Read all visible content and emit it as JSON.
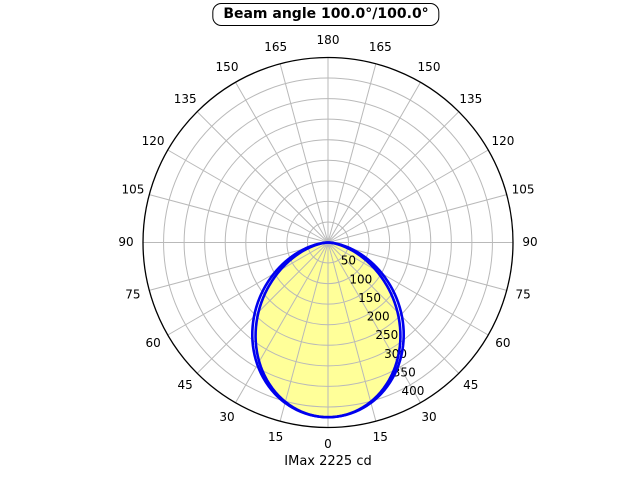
{
  "header": {
    "title": "Beam angle 100.0°/100.0°"
  },
  "footer": {
    "imax_label": "IMax 2225 cd"
  },
  "chart_data": {
    "type": "polar",
    "subtype": "luminous-intensity-distribution",
    "title": "Beam angle 100.0°/100.0°",
    "beam_angle_deg": {
      "plane_1": 100.0,
      "plane_2": 100.0
    },
    "imax_cd": 2225,
    "imax_label": "IMax 2225 cd",
    "orientation": "0-degrees-at-bottom",
    "angular_ticks_deg": [
      0,
      15,
      30,
      45,
      60,
      75,
      90,
      105,
      120,
      135,
      150,
      165,
      180
    ],
    "angular_ticks_mirrored_both_sides": true,
    "radial_ticks": [
      50,
      100,
      150,
      200,
      250,
      300,
      350,
      400
    ],
    "radial_max": 450,
    "radial_label_angle_deg": 25,
    "grid": true,
    "colors": {
      "grid": "#b9b9b9",
      "outer_ring": "#000000",
      "curve": "#0000ee",
      "fill": "#ffff99",
      "text": "#000000",
      "background": "#ffffff"
    },
    "series": [
      {
        "name": "beam-curve-wide-plane",
        "model": "cos_power",
        "exponent": 1.48,
        "imax": 425,
        "filled": false,
        "points_deg_value": [
          [
            0,
            425
          ],
          [
            10,
            416
          ],
          [
            20,
            388
          ],
          [
            30,
            344
          ],
          [
            40,
            287
          ],
          [
            50,
            221
          ],
          [
            60,
            152
          ],
          [
            70,
            87
          ],
          [
            80,
            32
          ],
          [
            90,
            0
          ]
        ]
      },
      {
        "name": "beam-curve-narrow-plane",
        "model": "cos_power",
        "exponent": 1.66,
        "imax": 425,
        "filled": true,
        "points_deg_value": [
          [
            0,
            425
          ],
          [
            10,
            414
          ],
          [
            20,
            384
          ],
          [
            30,
            335
          ],
          [
            40,
            273
          ],
          [
            50,
            204
          ],
          [
            60,
            134
          ],
          [
            70,
            72
          ],
          [
            80,
            23
          ],
          [
            90,
            0
          ]
        ]
      }
    ]
  }
}
